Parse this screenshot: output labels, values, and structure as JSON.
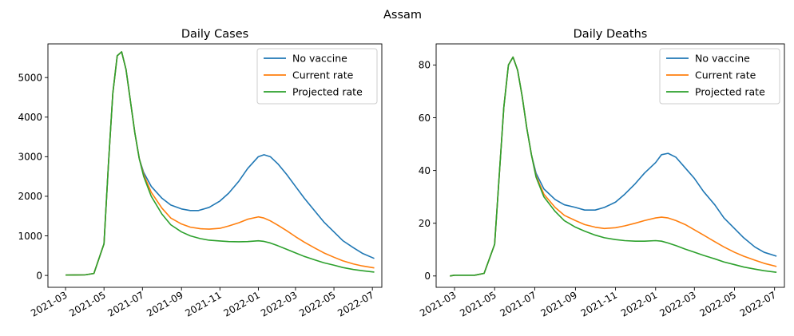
{
  "suptitle": "Assam",
  "colors": {
    "no_vaccine": "#1f77b4",
    "current_rate": "#ff7f0e",
    "projected_rate": "#2ca02c"
  },
  "chart_data": [
    {
      "type": "line",
      "title": "Daily Cases",
      "xlabel": "",
      "ylabel": "",
      "x_ticks": [
        "2021-03",
        "2021-05",
        "2021-07",
        "2021-09",
        "2021-11",
        "2022-01",
        "2022-03",
        "2022-05",
        "2022-07"
      ],
      "xlim": [
        "2021-02-01",
        "2022-07-16"
      ],
      "y_ticks": [
        0,
        1000,
        2000,
        3000,
        4000,
        5000
      ],
      "ylim": [
        -300,
        5850
      ],
      "grid": false,
      "legend": "top-right",
      "series": [
        {
          "name": "No vaccine",
          "color": "#1f77b4",
          "x": [
            "2021-03-01",
            "2021-03-15",
            "2021-04-01",
            "2021-04-15",
            "2021-05-01",
            "2021-05-08",
            "2021-05-15",
            "2021-05-22",
            "2021-05-29",
            "2021-06-05",
            "2021-06-12",
            "2021-06-19",
            "2021-06-26",
            "2021-07-03",
            "2021-07-15",
            "2021-08-01",
            "2021-08-15",
            "2021-09-01",
            "2021-09-15",
            "2021-09-28",
            "2021-10-15",
            "2021-11-01",
            "2021-11-15",
            "2021-12-01",
            "2021-12-15",
            "2022-01-01",
            "2022-01-10",
            "2022-01-20",
            "2022-02-01",
            "2022-02-15",
            "2022-03-01",
            "2022-03-15",
            "2022-04-01",
            "2022-04-15",
            "2022-05-01",
            "2022-05-15",
            "2022-06-01",
            "2022-06-15",
            "2022-07-04"
          ],
          "y": [
            10,
            12,
            15,
            50,
            800,
            2800,
            4600,
            5550,
            5650,
            5200,
            4400,
            3600,
            2950,
            2600,
            2250,
            1950,
            1780,
            1680,
            1640,
            1640,
            1720,
            1880,
            2080,
            2380,
            2700,
            3000,
            3050,
            3000,
            2820,
            2550,
            2250,
            1950,
            1620,
            1350,
            1100,
            880,
            700,
            560,
            430
          ]
        },
        {
          "name": "Current rate",
          "color": "#ff7f0e",
          "x": [
            "2021-03-01",
            "2021-03-15",
            "2021-04-01",
            "2021-04-15",
            "2021-05-01",
            "2021-05-08",
            "2021-05-15",
            "2021-05-22",
            "2021-05-29",
            "2021-06-05",
            "2021-06-12",
            "2021-06-19",
            "2021-06-26",
            "2021-07-03",
            "2021-07-15",
            "2021-08-01",
            "2021-08-15",
            "2021-09-01",
            "2021-09-15",
            "2021-10-01",
            "2021-10-15",
            "2021-11-01",
            "2021-11-15",
            "2021-12-01",
            "2021-12-15",
            "2022-01-01",
            "2022-01-10",
            "2022-01-20",
            "2022-02-01",
            "2022-02-15",
            "2022-03-01",
            "2022-03-15",
            "2022-04-01",
            "2022-04-15",
            "2022-05-01",
            "2022-05-15",
            "2022-06-01",
            "2022-06-15",
            "2022-07-04"
          ],
          "y": [
            10,
            12,
            15,
            50,
            800,
            2800,
            4600,
            5550,
            5650,
            5200,
            4400,
            3600,
            2950,
            2550,
            2100,
            1700,
            1450,
            1300,
            1220,
            1180,
            1170,
            1190,
            1250,
            1330,
            1420,
            1480,
            1450,
            1380,
            1270,
            1130,
            980,
            840,
            690,
            570,
            460,
            370,
            290,
            240,
            190
          ]
        },
        {
          "name": "Projected rate",
          "color": "#2ca02c",
          "x": [
            "2021-03-01",
            "2021-03-15",
            "2021-04-01",
            "2021-04-15",
            "2021-05-01",
            "2021-05-08",
            "2021-05-15",
            "2021-05-22",
            "2021-05-29",
            "2021-06-05",
            "2021-06-12",
            "2021-06-19",
            "2021-06-26",
            "2021-07-03",
            "2021-07-15",
            "2021-08-01",
            "2021-08-15",
            "2021-09-01",
            "2021-09-15",
            "2021-10-01",
            "2021-10-15",
            "2021-11-01",
            "2021-11-15",
            "2021-12-01",
            "2021-12-15",
            "2022-01-01",
            "2022-01-10",
            "2022-01-20",
            "2022-02-01",
            "2022-02-15",
            "2022-03-01",
            "2022-03-15",
            "2022-04-01",
            "2022-04-15",
            "2022-05-01",
            "2022-05-15",
            "2022-06-01",
            "2022-06-15",
            "2022-07-04"
          ],
          "y": [
            10,
            12,
            15,
            50,
            800,
            2800,
            4600,
            5550,
            5650,
            5200,
            4400,
            3600,
            2950,
            2500,
            2000,
            1550,
            1280,
            1100,
            1000,
            930,
            890,
            870,
            855,
            850,
            855,
            875,
            860,
            820,
            750,
            660,
            570,
            480,
            390,
            320,
            260,
            200,
            150,
            120,
            85
          ]
        }
      ]
    },
    {
      "type": "line",
      "title": "Daily Deaths",
      "xlabel": "",
      "ylabel": "",
      "x_ticks": [
        "2021-03",
        "2021-05",
        "2021-07",
        "2021-09",
        "2021-11",
        "2022-01",
        "2022-03",
        "2022-05",
        "2022-07"
      ],
      "xlim": [
        "2021-02-01",
        "2022-07-16"
      ],
      "y_ticks": [
        0,
        20,
        40,
        60,
        80
      ],
      "ylim": [
        -4.3,
        88
      ],
      "grid": false,
      "legend": "top-right",
      "series": [
        {
          "name": "No vaccine",
          "color": "#1f77b4",
          "x": [
            "2021-02-22",
            "2021-03-01",
            "2021-03-15",
            "2021-04-01",
            "2021-04-15",
            "2021-05-01",
            "2021-05-08",
            "2021-05-15",
            "2021-05-22",
            "2021-05-29",
            "2021-06-05",
            "2021-06-12",
            "2021-06-19",
            "2021-06-26",
            "2021-07-03",
            "2021-07-15",
            "2021-08-01",
            "2021-08-15",
            "2021-09-01",
            "2021-09-15",
            "2021-10-01",
            "2021-10-15",
            "2021-11-01",
            "2021-11-15",
            "2021-12-01",
            "2021-12-15",
            "2022-01-01",
            "2022-01-10",
            "2022-01-20",
            "2022-02-01",
            "2022-02-15",
            "2022-03-01",
            "2022-03-15",
            "2022-04-01",
            "2022-04-15",
            "2022-05-01",
            "2022-05-15",
            "2022-06-01",
            "2022-06-15",
            "2022-07-04"
          ],
          "y": [
            0,
            0.3,
            0.3,
            0.3,
            1,
            12,
            38,
            64,
            80,
            83,
            78,
            68,
            56,
            46,
            39,
            33,
            29,
            27,
            26,
            25,
            25,
            26,
            28,
            31,
            35,
            39,
            43,
            46,
            46.5,
            45,
            41,
            37,
            32,
            27,
            22,
            18,
            14.5,
            11,
            9,
            7.5
          ]
        },
        {
          "name": "Current rate",
          "color": "#ff7f0e",
          "x": [
            "2021-02-22",
            "2021-03-01",
            "2021-03-15",
            "2021-04-01",
            "2021-04-15",
            "2021-05-01",
            "2021-05-08",
            "2021-05-15",
            "2021-05-22",
            "2021-05-29",
            "2021-06-05",
            "2021-06-12",
            "2021-06-19",
            "2021-06-26",
            "2021-07-03",
            "2021-07-15",
            "2021-08-01",
            "2021-08-15",
            "2021-09-01",
            "2021-09-15",
            "2021-10-01",
            "2021-10-15",
            "2021-11-01",
            "2021-11-15",
            "2021-12-01",
            "2021-12-15",
            "2022-01-01",
            "2022-01-10",
            "2022-01-20",
            "2022-02-01",
            "2022-02-15",
            "2022-03-01",
            "2022-03-15",
            "2022-04-01",
            "2022-04-15",
            "2022-05-01",
            "2022-05-15",
            "2022-06-01",
            "2022-06-15",
            "2022-07-04"
          ],
          "y": [
            0,
            0.3,
            0.3,
            0.3,
            1,
            12,
            38,
            64,
            80,
            83,
            78,
            68,
            56,
            46,
            38,
            31,
            26,
            23,
            21,
            19.5,
            18.5,
            18,
            18.3,
            19,
            20,
            21,
            22,
            22.3,
            22,
            21,
            19.5,
            17.5,
            15.5,
            13,
            11,
            9,
            7.5,
            6,
            4.8,
            3.6
          ]
        },
        {
          "name": "Projected rate",
          "color": "#2ca02c",
          "x": [
            "2021-02-22",
            "2021-03-01",
            "2021-03-15",
            "2021-04-01",
            "2021-04-15",
            "2021-05-01",
            "2021-05-08",
            "2021-05-15",
            "2021-05-22",
            "2021-05-29",
            "2021-06-05",
            "2021-06-12",
            "2021-06-19",
            "2021-06-26",
            "2021-07-03",
            "2021-07-15",
            "2021-08-01",
            "2021-08-15",
            "2021-09-01",
            "2021-09-15",
            "2021-10-01",
            "2021-10-15",
            "2021-11-01",
            "2021-11-15",
            "2021-12-01",
            "2021-12-15",
            "2022-01-01",
            "2022-01-10",
            "2022-01-20",
            "2022-02-01",
            "2022-02-15",
            "2022-03-01",
            "2022-03-15",
            "2022-04-01",
            "2022-04-15",
            "2022-05-01",
            "2022-05-15",
            "2022-06-01",
            "2022-06-15",
            "2022-07-04"
          ],
          "y": [
            0,
            0.3,
            0.3,
            0.3,
            1,
            12,
            38,
            64,
            80,
            83,
            78,
            68,
            56,
            46,
            37.5,
            30,
            24.5,
            21,
            18.5,
            17,
            15.5,
            14.5,
            13.8,
            13.4,
            13.2,
            13.2,
            13.4,
            13.2,
            12.5,
            11.5,
            10.2,
            9,
            7.8,
            6.5,
            5.3,
            4.3,
            3.4,
            2.6,
            2,
            1.4
          ]
        }
      ]
    }
  ]
}
